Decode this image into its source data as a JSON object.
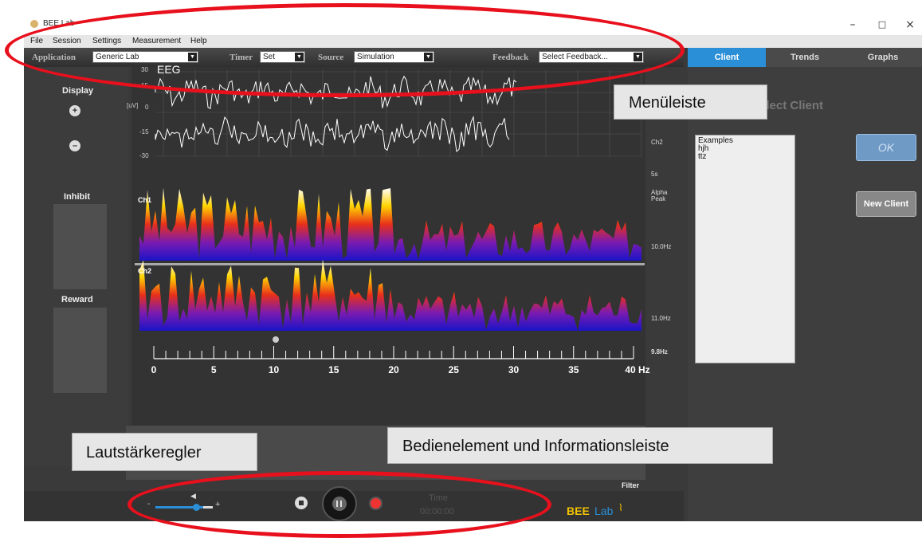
{
  "window": {
    "title": "BEE Lab",
    "min": "–",
    "max": "□",
    "close": "×"
  },
  "menu": [
    "File",
    "Session",
    "Settings",
    "Measurement",
    "Help"
  ],
  "toolbar": {
    "application_label": "Application",
    "application_value": "Generic Lab",
    "timer_label": "Timer",
    "timer_value": "Set",
    "source_label": "Source",
    "source_value": "Simulation",
    "feedback_label": "Feedback",
    "feedback_value": "Select Feedback..."
  },
  "tabs": [
    "Client",
    "Trends",
    "Graphs"
  ],
  "left": {
    "display": "Display",
    "plus": "+",
    "minus": "–",
    "inhibit": "Inhibit",
    "reward": "Reward"
  },
  "eeg": {
    "title": "EEG",
    "unit": "[uV]",
    "y_ticks": [
      "30",
      "15",
      "0",
      "-15",
      "-30"
    ],
    "ch_right": "Ch2",
    "time_right": "5s"
  },
  "spectrum": {
    "ch1": "Ch1",
    "ch2": "Ch2",
    "alpha": "Alpha",
    "peak": "Peak",
    "peak1": "10.0Hz",
    "peak2": "11.0Hz",
    "peak3": "9.8Hz",
    "x_ticks": [
      "0",
      "5",
      "10",
      "15",
      "20",
      "25",
      "30",
      "35",
      "40 Hz"
    ]
  },
  "client": {
    "select_title": "Select Client",
    "items": [
      "Examples",
      "hjh",
      "ttz"
    ],
    "ok": "OK",
    "new": "New Client"
  },
  "bottom": {
    "filter": "Filter",
    "time_label": "Time",
    "time_value": "00:00:00",
    "logo_a": "BEE",
    "logo_b": "Lab",
    "vol_minus": "-",
    "vol_plus": "+"
  },
  "annotations": {
    "menu": "Menüleiste",
    "volume": "Lautstärkeregler",
    "controls": "Bedienelement und Informationsleiste"
  },
  "colors": {
    "accent": "#2a8fd6",
    "annotation_red": "#e8101c",
    "logo_yellow": "#f2c200",
    "logo_blue": "#2a8fd6"
  }
}
